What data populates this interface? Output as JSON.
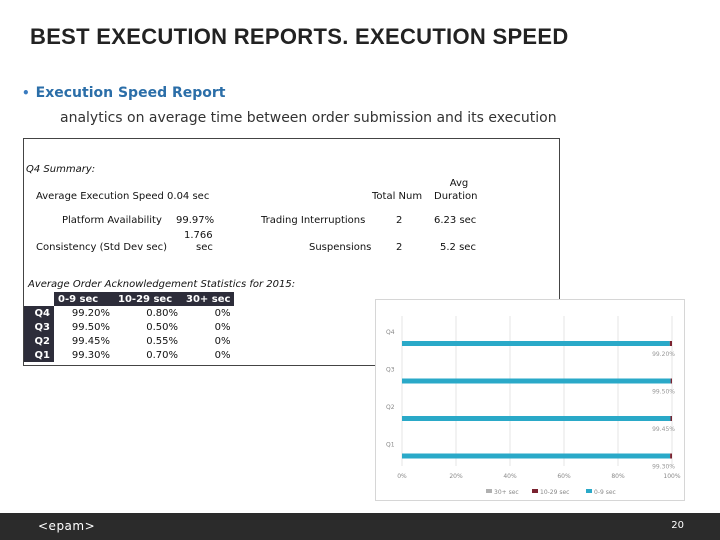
{
  "header": {
    "title": "BEST EXECUTION REPORTS. EXECUTION SPEED"
  },
  "section": {
    "bullet": "Execution Speed Report",
    "subtitle": "analytics on average time between order submission and its execution"
  },
  "summary": {
    "title": "Q4 Summary:",
    "avg_speed_label": "Average Execution Speed",
    "avg_speed_value": "0.04 sec",
    "col_total_num": "Total Num",
    "col_avg": "Avg",
    "col_duration": "Duration",
    "platform_label": "Platform Availability",
    "platform_value": "99.97%",
    "consistency_label": "Consistency (Std Dev sec)",
    "consistency_value_1": "1.766",
    "consistency_value_2": "sec",
    "trading_label": "Trading Interruptions",
    "trading_num": "2",
    "trading_duration": "6.23 sec",
    "susp_label": "Suspensions",
    "susp_num": "2",
    "susp_duration": "5.2 sec"
  },
  "ack_stats": {
    "title": "Average Order Acknowledgement Statistics for 2015:",
    "headers": [
      "0-9 sec",
      "10-29 sec",
      "30+ sec"
    ],
    "rows": [
      {
        "q": "Q4",
        "v1": "99.20%",
        "v2": "0.80%",
        "v3": "0%"
      },
      {
        "q": "Q3",
        "v1": "99.50%",
        "v2": "0.50%",
        "v3": "0%"
      },
      {
        "q": "Q2",
        "v1": "99.45%",
        "v2": "0.55%",
        "v3": "0%"
      },
      {
        "q": "Q1",
        "v1": "99.30%",
        "v2": "0.70%",
        "v3": "0%"
      }
    ]
  },
  "chart_data": {
    "type": "bar",
    "orientation": "horizontal",
    "stacked": true,
    "categories": [
      "Q1",
      "Q2",
      "Q3",
      "Q4"
    ],
    "series": [
      {
        "name": "30+ sec",
        "values": [
          0,
          0,
          0,
          0
        ],
        "color": "#b0b0b0"
      },
      {
        "name": "10-29 sec",
        "values": [
          0.7,
          0.55,
          0.5,
          0.8
        ],
        "color": "#7a2230"
      },
      {
        "name": "0-9 sec",
        "values": [
          99.3,
          99.45,
          99.5,
          99.2
        ],
        "color": "#2aa9c8"
      }
    ],
    "data_labels": [
      "99.30%",
      "99.45%",
      "99.50%",
      "99.20%"
    ],
    "xlim": [
      0,
      100
    ],
    "xticks": [
      "0%",
      "20%",
      "40%",
      "60%",
      "80%",
      "100%"
    ],
    "grid": true,
    "legend": "bottom"
  },
  "footer": {
    "logo": "<epam>",
    "page": "20"
  }
}
